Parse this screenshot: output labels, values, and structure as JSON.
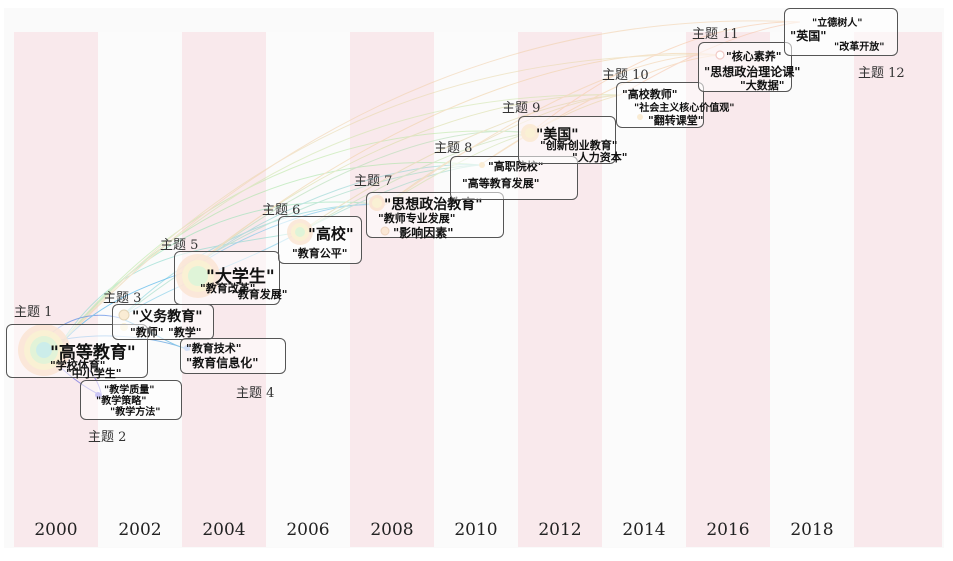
{
  "years": [
    "2000",
    "2002",
    "2004",
    "2006",
    "2008",
    "2010",
    "2012",
    "2014",
    "2016",
    "2018"
  ],
  "topics": [
    {
      "label": "主题 1",
      "keywords": [
        "\"高等教育\"",
        "\"学校体育\"",
        "\"中小学生\""
      ]
    },
    {
      "label": "主题 2",
      "keywords": [
        "\"教学质量\"",
        "\"教学策略\"",
        "\"教学方法\""
      ]
    },
    {
      "label": "主题 3",
      "keywords": [
        "\"义务教育\"",
        "\"教师\"",
        "\"教学\""
      ]
    },
    {
      "label": "主题 4",
      "keywords": [
        "\"教育技术\"",
        "\"教育信息化\""
      ]
    },
    {
      "label": "主题 5",
      "keywords": [
        "\"大学生\"",
        "\"教育改革\"",
        "\"教育发展\""
      ]
    },
    {
      "label": "主题 6",
      "keywords": [
        "\"高校\"",
        "\"教育公平\""
      ]
    },
    {
      "label": "主题 7",
      "keywords": [
        "\"思想政治教育\"",
        "\"教师专业发展\"",
        "\"影响因素\""
      ]
    },
    {
      "label": "主题 8",
      "keywords": [
        "\"高职院校\"",
        "\"高等教育发展\""
      ]
    },
    {
      "label": "主题 9",
      "keywords": [
        "\"美国\"",
        "\"创新创业教育\"",
        "\"人力资本\""
      ]
    },
    {
      "label": "主题 10",
      "keywords": [
        "\"高校教师\"",
        "\"社会主义核心价值观\"",
        "\"翻转课堂\""
      ]
    },
    {
      "label": "主题 11",
      "keywords": [
        "\"核心素养\"",
        "\"思想政治理论课\"",
        "\"大数据\""
      ]
    },
    {
      "label": "主题 12",
      "keywords": [
        "\"立德树人\"",
        "\"英国\"",
        "\"改革开放\""
      ]
    }
  ]
}
